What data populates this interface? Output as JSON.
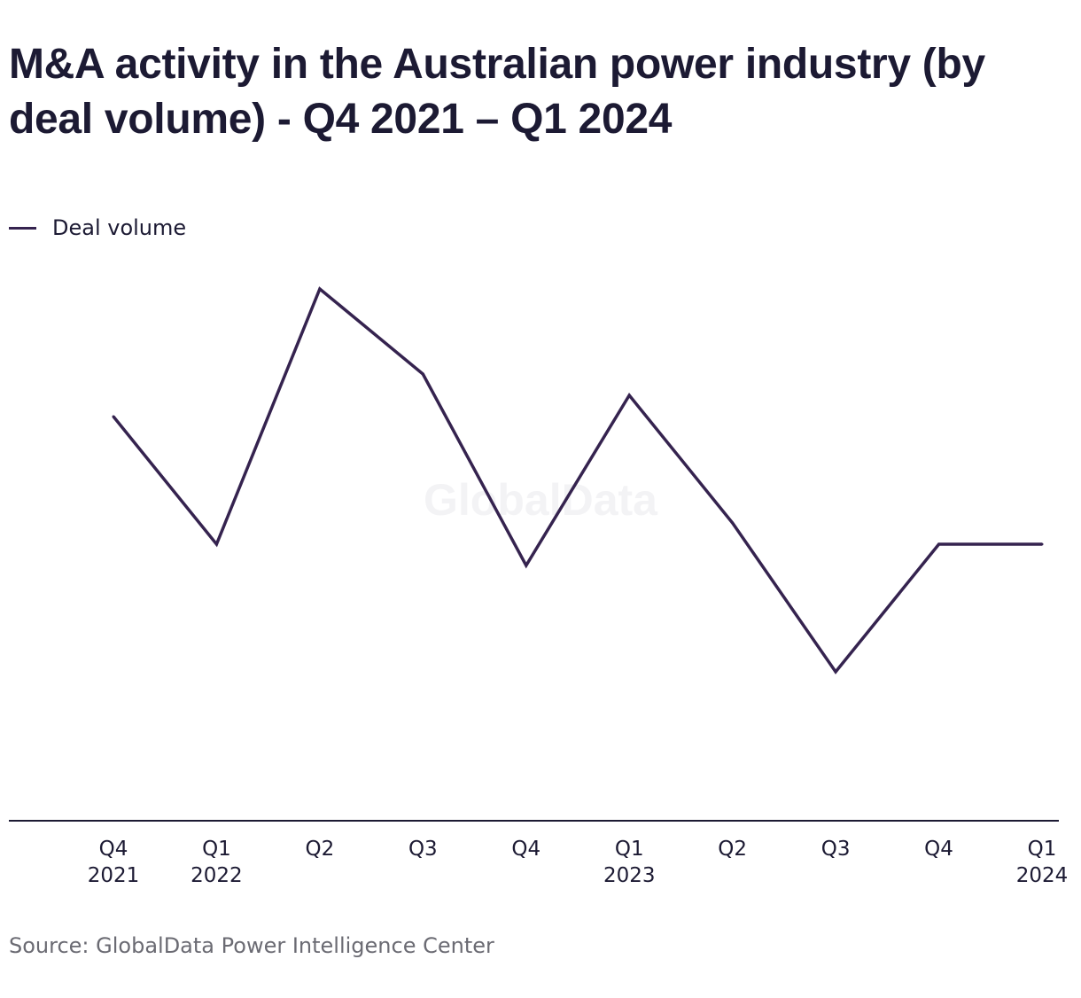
{
  "title": "M&A activity in the Australian power industry (by deal volume) - Q4 2021 – Q1 2024",
  "watermark": "GlobalData",
  "source": "Source: GlobalData Power Intelligence Center",
  "colors": {
    "line": "#35234f",
    "text": "#1c1a33",
    "source": "#6b6b73",
    "axis": "#1c1a33"
  },
  "chart_data": {
    "type": "line",
    "title": "M&A activity in the Australian power industry (by deal volume) - Q4 2021 – Q1 2024",
    "xlabel": "",
    "ylabel": "",
    "grid": false,
    "legend_position": "top-left",
    "categories": [
      [
        "Q4",
        "2021"
      ],
      [
        "Q1",
        "2022"
      ],
      [
        "Q2"
      ],
      [
        "Q3"
      ],
      [
        "Q4"
      ],
      [
        "Q1",
        "2023"
      ],
      [
        "Q2"
      ],
      [
        "Q3"
      ],
      [
        "Q4"
      ],
      [
        "Q1",
        "2024"
      ]
    ],
    "series": [
      {
        "name": "Deal volume",
        "values": [
          19,
          13,
          25,
          21,
          12,
          20,
          14,
          7,
          13,
          13
        ]
      }
    ],
    "ylim": [
      0,
      33
    ]
  }
}
